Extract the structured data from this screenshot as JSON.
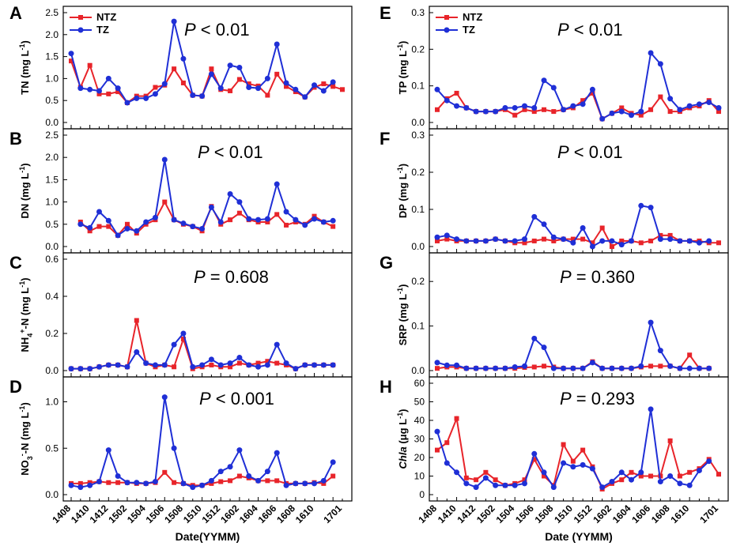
{
  "figure": {
    "left_xlabel": "Date(YYMM)",
    "right_xlabel": "Date (YYMM)",
    "legend": [
      {
        "name": "NTZ",
        "color": "#e8242a"
      },
      {
        "name": "TZ",
        "color": "#1f2fd6"
      }
    ],
    "x_tick_labels": [
      "1408",
      "1410",
      "1412",
      "1502",
      "1504",
      "1506",
      "1508",
      "1510",
      "1512",
      "1602",
      "1604",
      "1606",
      "1608",
      "1610",
      "1701"
    ]
  },
  "chart_data": [
    {
      "panel": "A",
      "type": "line",
      "ylabel": "TN (mg L-1)",
      "ylabel_main": "TN (mg L",
      "ylabel_sup": "-1",
      "ylabel_end": ")",
      "p_label": "P",
      "p_text": " < 0.01",
      "ylim": [
        0,
        2.5
      ],
      "yticks": [
        "0.0",
        "0.5",
        "1.0",
        "1.5",
        "2.0",
        "2.5"
      ],
      "series": [
        {
          "name": "NTZ",
          "values": [
            1.4,
            0.8,
            1.3,
            0.65,
            0.65,
            0.7,
            0.45,
            0.6,
            0.6,
            0.8,
            0.85,
            1.22,
            0.9,
            0.62,
            0.6,
            1.22,
            0.75,
            0.72,
            0.98,
            0.88,
            0.83,
            0.62,
            1.1,
            0.82,
            0.7,
            0.58,
            0.8,
            0.88,
            0.82,
            0.75
          ]
        },
        {
          "name": "TZ",
          "values": [
            1.57,
            0.78,
            0.75,
            0.72,
            1.0,
            0.78,
            0.45,
            0.55,
            0.55,
            0.65,
            0.88,
            2.3,
            1.45,
            0.62,
            0.6,
            1.1,
            0.78,
            1.3,
            1.25,
            0.8,
            0.78,
            1.0,
            1.78,
            0.9,
            0.75,
            0.58,
            0.85,
            0.72,
            0.92,
            null
          ]
        }
      ]
    },
    {
      "panel": "B",
      "type": "line",
      "ylabel": "DN (mg L-1)",
      "ylabel_main": "DN (mg L",
      "ylabel_sup": "-1",
      "ylabel_end": ")",
      "p_label": "P",
      "p_text": " < 0.01",
      "ylim": [
        0,
        2.5
      ],
      "yticks": [
        "0.0",
        "0.5",
        "1.0",
        "1.5",
        "2.0",
        "2.5"
      ],
      "series": [
        {
          "name": "NTZ",
          "values": [
            null,
            0.55,
            0.35,
            0.45,
            0.45,
            0.25,
            0.5,
            0.3,
            0.5,
            0.6,
            1.0,
            0.6,
            0.5,
            0.45,
            0.35,
            0.9,
            0.5,
            0.6,
            0.75,
            0.6,
            0.55,
            0.55,
            0.72,
            0.48,
            0.55,
            0.5,
            0.68,
            0.55,
            0.45,
            null
          ]
        },
        {
          "name": "TZ",
          "values": [
            null,
            0.5,
            0.42,
            0.78,
            0.58,
            0.25,
            0.4,
            0.35,
            0.55,
            0.65,
            1.95,
            0.6,
            0.52,
            0.45,
            0.4,
            0.88,
            0.55,
            1.18,
            1.0,
            0.62,
            0.6,
            0.62,
            1.4,
            0.78,
            0.6,
            0.48,
            0.62,
            0.55,
            0.58,
            null
          ]
        }
      ]
    },
    {
      "panel": "C",
      "type": "line",
      "ylabel": "NH4+-N (mg L-1)",
      "ylabel_main": "NH",
      "ylabel_sub": "4",
      "ylabel_sup": "+",
      "ylabel_end": "-N (mg L",
      "ylabel_sup2": "-1",
      "ylabel_end2": ")",
      "p_label": "P",
      "p_text": " = 0.608",
      "ylim": [
        0,
        0.6
      ],
      "yticks": [
        "0.0",
        "0.2",
        "0.4",
        "0.6"
      ],
      "series": [
        {
          "name": "NTZ",
          "values": [
            0.01,
            0.01,
            0.01,
            0.02,
            0.03,
            0.03,
            0.02,
            0.27,
            0.04,
            0.02,
            0.03,
            0.02,
            0.17,
            0.01,
            0.02,
            0.03,
            0.02,
            0.02,
            0.04,
            0.03,
            0.04,
            0.05,
            0.04,
            0.03,
            0.01,
            0.03,
            0.03,
            0.03,
            0.03,
            null
          ]
        },
        {
          "name": "TZ",
          "values": [
            0.01,
            0.01,
            0.01,
            0.02,
            0.03,
            0.03,
            0.02,
            0.1,
            0.04,
            0.03,
            0.03,
            0.14,
            0.2,
            0.02,
            0.03,
            0.06,
            0.03,
            0.04,
            0.07,
            0.03,
            0.02,
            0.03,
            0.14,
            0.04,
            0.01,
            0.03,
            0.03,
            0.03,
            0.03,
            null
          ]
        }
      ]
    },
    {
      "panel": "D",
      "type": "line",
      "ylabel": "NO3--N (mg L-1)",
      "ylabel_main": "NO",
      "ylabel_sub": "3",
      "ylabel_sup": "-",
      "ylabel_end": "-N (mg L",
      "ylabel_sup2": "-1",
      "ylabel_end2": ")",
      "p_label": "P",
      "p_text": " < 0.001",
      "ylim": [
        0,
        1.2
      ],
      "yticks": [
        "0.0",
        "0.5",
        "1.0"
      ],
      "series": [
        {
          "name": "NTZ",
          "values": [
            0.12,
            0.12,
            0.13,
            0.14,
            0.13,
            0.13,
            0.13,
            0.12,
            0.12,
            0.13,
            0.24,
            0.13,
            0.12,
            0.1,
            0.1,
            0.12,
            0.14,
            0.15,
            0.2,
            0.18,
            0.15,
            0.15,
            0.15,
            0.12,
            0.12,
            0.12,
            0.13,
            0.12,
            0.2,
            null
          ]
        },
        {
          "name": "TZ",
          "values": [
            0.1,
            0.08,
            0.1,
            0.14,
            0.48,
            0.2,
            0.13,
            0.13,
            0.12,
            0.14,
            1.05,
            0.5,
            0.12,
            0.08,
            0.1,
            0.15,
            0.25,
            0.3,
            0.48,
            0.2,
            0.15,
            0.25,
            0.45,
            0.1,
            0.12,
            0.12,
            0.12,
            0.15,
            0.35,
            null
          ]
        }
      ]
    },
    {
      "panel": "E",
      "type": "line",
      "ylabel": "TP (mg L-1)",
      "ylabel_main": "TP (mg L",
      "ylabel_sup": "-1",
      "ylabel_end": ")",
      "p_label": "P",
      "p_text": " < 0.01",
      "ylim": [
        0,
        0.3
      ],
      "yticks": [
        "0.0",
        "0.1",
        "0.2",
        "0.3"
      ],
      "series": [
        {
          "name": "NTZ",
          "values": [
            0.035,
            0.065,
            0.08,
            0.04,
            0.03,
            0.03,
            0.03,
            0.035,
            0.02,
            0.035,
            0.03,
            0.035,
            0.03,
            0.035,
            0.04,
            0.06,
            0.08,
            0.01,
            0.025,
            0.04,
            0.025,
            0.02,
            0.035,
            0.07,
            0.03,
            0.03,
            0.04,
            0.045,
            0.06,
            0.03
          ]
        },
        {
          "name": "TZ",
          "values": [
            0.09,
            0.06,
            0.045,
            0.04,
            0.03,
            0.03,
            0.03,
            0.04,
            0.04,
            0.045,
            0.04,
            0.115,
            0.095,
            0.035,
            0.045,
            0.05,
            0.09,
            0.01,
            0.025,
            0.03,
            0.02,
            0.03,
            0.19,
            0.16,
            0.065,
            0.035,
            0.045,
            0.05,
            0.055,
            0.04
          ]
        }
      ]
    },
    {
      "panel": "F",
      "type": "line",
      "ylabel": "DP (mg L-1)",
      "ylabel_main": "DP (mg L",
      "ylabel_sup": "-1",
      "ylabel_end": ")",
      "p_label": "P",
      "p_text": " < 0.01",
      "ylim": [
        0,
        0.3
      ],
      "yticks": [
        "0.0",
        "0.1",
        "0.2",
        "0.3"
      ],
      "series": [
        {
          "name": "NTZ",
          "values": [
            0.015,
            0.02,
            0.015,
            0.015,
            0.015,
            0.015,
            0.02,
            0.015,
            0.01,
            0.01,
            0.015,
            0.02,
            0.015,
            0.02,
            0.02,
            0.02,
            0.01,
            0.05,
            0.0,
            0.015,
            0.015,
            0.01,
            0.015,
            0.03,
            0.03,
            0.015,
            0.015,
            0.015,
            0.01,
            0.01
          ]
        },
        {
          "name": "TZ",
          "values": [
            0.025,
            0.03,
            0.02,
            0.015,
            0.015,
            0.015,
            0.02,
            0.015,
            0.015,
            0.02,
            0.08,
            0.06,
            0.025,
            0.02,
            0.01,
            0.05,
            0.0,
            0.015,
            0.015,
            0.005,
            0.015,
            0.11,
            0.105,
            0.02,
            0.02,
            0.015,
            0.015,
            0.01,
            0.015,
            null
          ]
        }
      ]
    },
    {
      "panel": "G",
      "type": "line",
      "ylabel": "SRP (mg L-1)",
      "ylabel_main": "SRP (mg L",
      "ylabel_sup": "-1",
      "ylabel_end": ")",
      "p_label": "P",
      "p_text": " = 0.360",
      "ylim": [
        0,
        0.25
      ],
      "yticks": [
        "0.0",
        "0.1",
        "0.2"
      ],
      "series": [
        {
          "name": "NTZ",
          "values": [
            0.005,
            0.008,
            0.008,
            0.005,
            0.005,
            0.005,
            0.005,
            0.005,
            0.005,
            0.007,
            0.008,
            0.01,
            0.008,
            0.005,
            0.005,
            0.005,
            0.02,
            0.005,
            0.005,
            0.005,
            0.005,
            0.008,
            0.01,
            0.01,
            0.01,
            0.005,
            0.035,
            0.005,
            0.005,
            null
          ]
        },
        {
          "name": "TZ",
          "values": [
            0.018,
            0.012,
            0.012,
            0.005,
            0.005,
            0.005,
            0.005,
            0.005,
            0.008,
            0.01,
            0.072,
            0.052,
            0.005,
            0.005,
            0.005,
            0.005,
            0.018,
            0.005,
            0.005,
            0.005,
            0.005,
            0.01,
            0.108,
            0.045,
            0.01,
            0.005,
            0.005,
            0.005,
            0.005,
            null
          ]
        }
      ]
    },
    {
      "panel": "H",
      "type": "line",
      "ylabel": "Chla (μg L-1)",
      "ylabel_main": "Chla",
      "ylabel_end": " (μg L",
      "ylabel_sup": "-1",
      "ylabel_end2": ")",
      "p_label": "P",
      "p_text": " = 0.293",
      "ylim": [
        0,
        60
      ],
      "yticks": [
        "0",
        "10",
        "20",
        "30",
        "40",
        "50",
        "60"
      ],
      "series": [
        {
          "name": "NTZ",
          "values": [
            24,
            28,
            41,
            9,
            8,
            12,
            8,
            5,
            6,
            8,
            19,
            10,
            5,
            27,
            18,
            24,
            15,
            3,
            6,
            8,
            12,
            10,
            10,
            10,
            29,
            10,
            12,
            14,
            19,
            11
          ]
        },
        {
          "name": "TZ",
          "values": [
            34,
            17,
            12,
            6,
            4,
            9,
            5,
            5,
            5,
            6,
            22,
            12,
            4,
            17,
            15,
            16,
            14,
            4,
            7,
            12,
            8,
            12,
            46,
            7,
            10,
            6,
            5,
            13,
            18,
            null
          ]
        }
      ]
    }
  ]
}
